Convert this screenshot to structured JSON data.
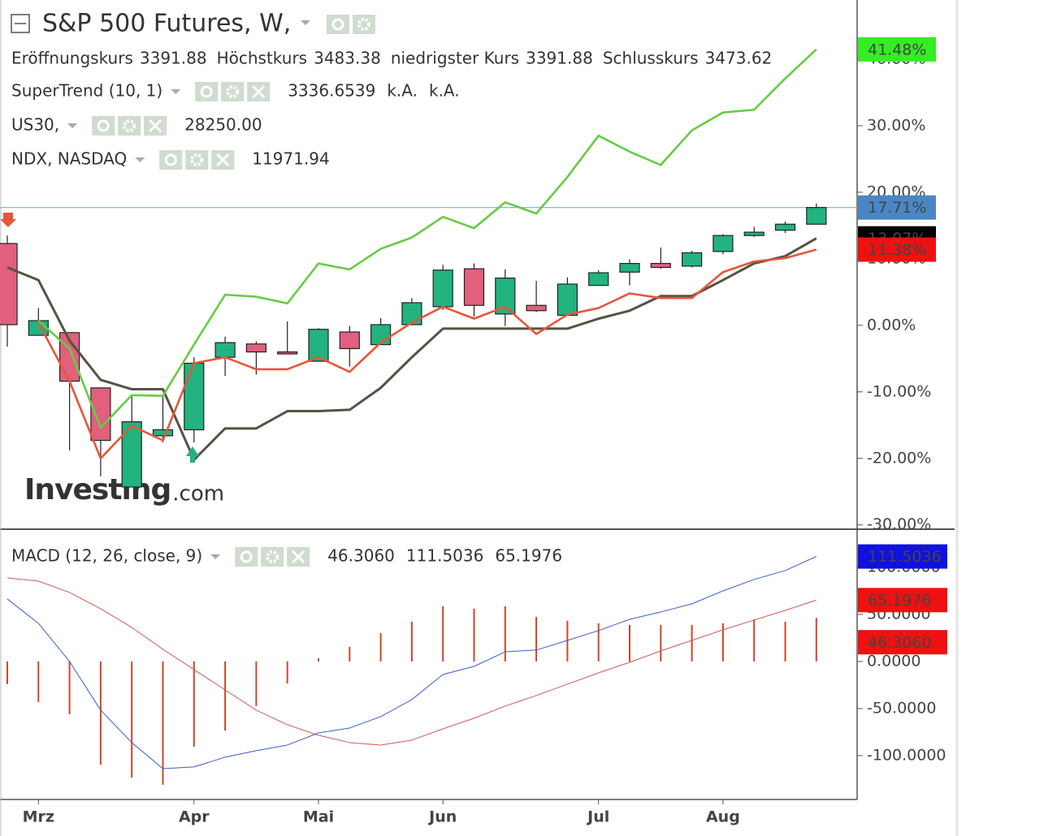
{
  "chart_data": [
    {
      "type": "candlestick",
      "title": "S&P 500 Futures, W,",
      "ohlc_legend": [
        {
          "label": "Eröffnungskurs",
          "value": "3391.88"
        },
        {
          "label": "Höchstkurs",
          "value": "3483.38"
        },
        {
          "label": "niedrigster Kurs",
          "value": "3391.88"
        },
        {
          "label": "Schlusskurs",
          "value": "3473.62"
        }
      ],
      "categories": [
        null,
        "Mrz",
        null,
        null,
        null,
        null,
        "Apr",
        null,
        null,
        null,
        "Mai",
        null,
        null,
        null,
        "Jun",
        null,
        null,
        null,
        null,
        "Jul",
        null,
        null,
        null,
        "Aug",
        null,
        null,
        null
      ],
      "open": [
        12.3,
        -1.5,
        -1.1,
        -9.4,
        -24.3,
        -16.6,
        -15.7,
        -4.8,
        -2.8,
        -4.0,
        -5.4,
        -1.0,
        -2.9,
        0.1,
        2.8,
        8.5,
        1.7,
        3.0,
        1.5,
        6.0,
        8.0,
        9.3,
        8.9,
        11.1,
        13.5,
        14.3,
        15.2
      ],
      "high": [
        13.5,
        2.6,
        -1.1,
        -9.4,
        -10.5,
        -10.5,
        -4.8,
        -1.7,
        -2.4,
        0.6,
        -0.4,
        -0.1,
        1.1,
        4.1,
        9.1,
        9.3,
        8.4,
        6.7,
        7.2,
        8.3,
        9.9,
        11.7,
        11.2,
        13.7,
        14.8,
        15.6,
        18.3
      ],
      "low": [
        -3.2,
        -1.5,
        -18.8,
        -22.7,
        -24.3,
        -17.6,
        -17.6,
        -7.6,
        -7.4,
        -4.3,
        -5.4,
        -6.2,
        -2.9,
        0.1,
        2.3,
        1.3,
        -0.1,
        2.0,
        1.5,
        6.0,
        6.0,
        8.5,
        8.7,
        10.7,
        13.3,
        13.9,
        15.2
      ],
      "close": [
        0.1,
        0.7,
        -8.4,
        -17.3,
        -14.5,
        -15.7,
        -5.7,
        -2.6,
        -4.0,
        -4.3,
        -0.6,
        -3.5,
        0.1,
        3.4,
        8.3,
        3.0,
        7.1,
        2.2,
        6.2,
        7.9,
        9.3,
        8.7,
        10.9,
        13.5,
        14.0,
        15.2,
        17.71
      ],
      "up_color": "#22b37f",
      "down_color": "#e0607e",
      "price_line_color": "#8fb3df",
      "last_label": "17.71%",
      "last_label_color": "#4a86c5",
      "series": [
        {
          "name": "SuperTrend (10, 1)",
          "color": "#565243",
          "readout_color": "#111111",
          "readouts": [
            "3336.6539",
            "k.A.",
            "k.A."
          ],
          "last_label": "13.07%",
          "last_label_color": "#000000",
          "values": [
            8.7,
            6.8,
            -2.3,
            -8.2,
            -9.6,
            -9.6,
            -20.2,
            -15.5,
            -15.5,
            -12.9,
            -12.9,
            -12.7,
            -9.4,
            -4.8,
            -0.5,
            -0.5,
            -0.5,
            -0.5,
            -0.5,
            1.0,
            2.2,
            4.4,
            4.4,
            6.8,
            9.3,
            10.4,
            13.07
          ]
        },
        {
          "name": "US30,",
          "color": "#e8553a",
          "readout_color": "#dd1111",
          "readouts": [
            "28250.00"
          ],
          "last_label": "11.38%",
          "last_label_color": "#ee1111",
          "values": [
            null,
            0.4,
            -8.4,
            -20.0,
            -15.1,
            -17.3,
            -5.7,
            -4.8,
            -6.6,
            -6.6,
            -4.8,
            -7.0,
            -2.6,
            0.4,
            2.8,
            1.0,
            2.8,
            -1.3,
            1.6,
            2.6,
            4.8,
            4.1,
            4.1,
            8.0,
            9.6,
            10.1,
            11.38
          ]
        },
        {
          "name": "NDX, NASDAQ",
          "color": "#66cc44",
          "readout_color": "#33cc11",
          "readouts": [
            "11971.94"
          ],
          "last_label": "41.48%",
          "last_label_color": "#33ee22",
          "values": [
            null,
            0.7,
            -3.5,
            -15.4,
            -10.5,
            -10.6,
            -2.9,
            4.6,
            4.3,
            3.3,
            9.3,
            8.4,
            11.5,
            13.2,
            16.3,
            14.6,
            18.5,
            16.8,
            22.3,
            28.5,
            26.1,
            24.1,
            29.3,
            32.0,
            32.4,
            37.1,
            41.48
          ]
        }
      ],
      "ylim": [
        -30.4,
        48.9
      ],
      "yticks": [
        {
          "value": -30,
          "label": "-30.00%"
        },
        {
          "value": -20,
          "label": "-20.00%"
        },
        {
          "value": -10,
          "label": "-10.00%"
        },
        {
          "value": 0,
          "label": "0.00%"
        },
        {
          "value": 10,
          "label": "10.00%"
        },
        {
          "value": 20,
          "label": "20.00%"
        },
        {
          "value": 30,
          "label": "30.00%"
        },
        {
          "value": 40,
          "label": "40.00%"
        }
      ]
    },
    {
      "type": "macd",
      "title": "MACD (12, 26, close, 9)",
      "histogram": {
        "color": "#d0452a",
        "readout": "46.3060",
        "readout_color": "#dd1111",
        "label_color": "#ee1111",
        "values": [
          -24.1,
          -43.1,
          -56.0,
          -109.5,
          -123.3,
          -131.0,
          -90.5,
          -73.3,
          -47.4,
          -23.3,
          3.4,
          15.5,
          30.2,
          42.2,
          58.6,
          56.0,
          58.6,
          47.4,
          43.1,
          40.5,
          38.8,
          38.8,
          38.8,
          40.5,
          44.8,
          42.2,
          46.306
        ]
      },
      "macd_line": {
        "color": "#3a5fcc",
        "readout": "111.5036",
        "readout_color": "#1a2acc",
        "label_color": "#1111dd",
        "values": [
          66.4,
          40.5,
          0,
          -51.7,
          -86.2,
          -113.8,
          -112.0,
          -101.7,
          -94.8,
          -88.8,
          -75.9,
          -70.7,
          -58.6,
          -40.5,
          -13.8,
          -5.2,
          10.3,
          12.1,
          22.4,
          32.8,
          44.8,
          52.6,
          61.2,
          75.0,
          87.1,
          96.6,
          111.5036
        ]
      },
      "signal_line": {
        "color": "#cc5a5a",
        "readout": "65.1976",
        "readout_color": "#dd1111",
        "label_color": "#ee1111",
        "values": [
          88.8,
          85.3,
          73.3,
          56.0,
          36.2,
          12.9,
          -8.6,
          -30.2,
          -51.7,
          -67.2,
          -78.4,
          -86.2,
          -88.8,
          -83.6,
          -71.6,
          -60.3,
          -47.4,
          -36.2,
          -24.1,
          -12.1,
          -0.9,
          11.2,
          22.4,
          33.6,
          44.0,
          54.3,
          65.1976
        ]
      },
      "ylim": [
        -146.6,
        140.5
      ],
      "yticks": [
        {
          "value": -100,
          "label": "-100.0000"
        },
        {
          "value": -50,
          "label": "-50.0000"
        },
        {
          "value": 0,
          "label": "0.0000"
        },
        {
          "value": 50,
          "label": "50.0000"
        },
        {
          "value": 100,
          "label": "100.0000"
        }
      ]
    }
  ],
  "watermark": {
    "brand": "Investing",
    "suffix": ".com"
  }
}
